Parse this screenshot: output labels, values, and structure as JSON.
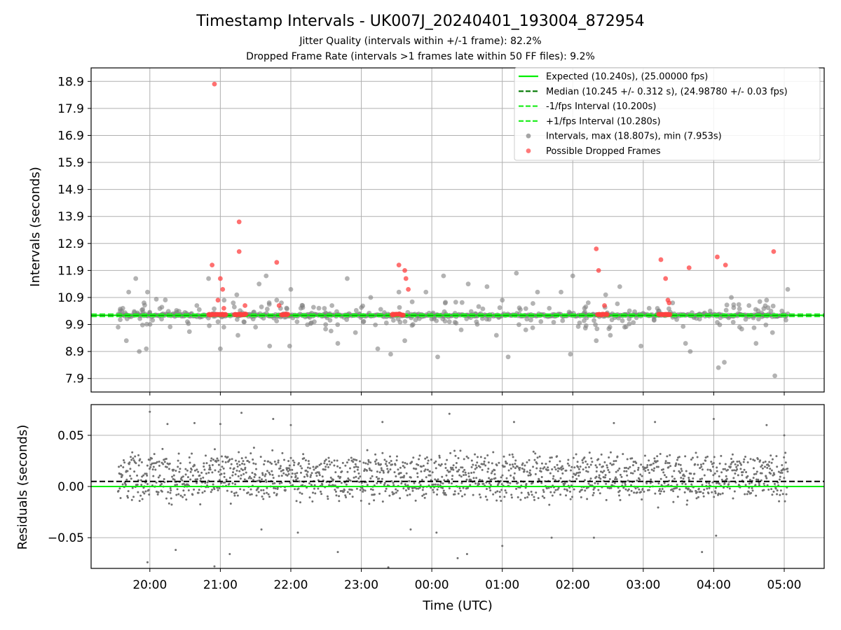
{
  "title": "Timestamp Intervals - UK007J_20240401_193004_872954",
  "subtitle_1": "Jitter Quality (intervals within +/-1 frame): 82.2%",
  "subtitle_2": "Dropped Frame Rate (intervals >1 frames late within 50 FF files): 9.2%",
  "chart_data": [
    {
      "type": "scatter",
      "ylabel": "Intervals (seconds)",
      "xlabel": "",
      "yticks": [
        "7.9",
        "8.9",
        "9.9",
        "10.9",
        "11.9",
        "12.9",
        "13.9",
        "14.9",
        "15.9",
        "16.9",
        "17.9",
        "18.9"
      ],
      "ylim": [
        7.4,
        19.4
      ],
      "xlim": [
        "19:10",
        "05:34"
      ],
      "grid": true,
      "legend_position": "top-right",
      "reference_lines": [
        {
          "label": "Expected (10.240s), (25.00000 fps)",
          "value": 10.24,
          "color": "#00ee00",
          "style": "solid"
        },
        {
          "label": "Median (10.245 +/- 0.312 s), (24.98780 +/- 0.03 fps)",
          "value": 10.245,
          "color": "#007700",
          "style": "dashed"
        },
        {
          "label": "-1/fps Interval (10.200s)",
          "value": 10.2,
          "color": "#22ee22",
          "style": "dashed"
        },
        {
          "label": "+1/fps Interval (10.280s)",
          "value": 10.28,
          "color": "#22ee22",
          "style": "dashed"
        }
      ],
      "series": [
        {
          "name": "Intervals, max (18.807s), min (7.953s)",
          "color": "#808080",
          "points": [
            [
              "19:33",
              9.8
            ],
            [
              "19:37",
              10.5
            ],
            [
              "19:40",
              9.3
            ],
            [
              "19:42",
              11.1
            ],
            [
              "19:48",
              11.6
            ],
            [
              "19:51",
              8.9
            ],
            [
              "19:55",
              10.7
            ],
            [
              "19:57",
              9.0
            ],
            [
              "19:58",
              11.1
            ],
            [
              "20:10",
              10.1
            ],
            [
              "20:20",
              10.3
            ],
            [
              "20:40",
              10.6
            ],
            [
              "20:50",
              11.6
            ],
            [
              "20:58",
              10.0
            ],
            [
              "21:00",
              9.0
            ],
            [
              "21:03",
              9.8
            ],
            [
              "21:11",
              10.7
            ],
            [
              "21:14",
              11.0
            ],
            [
              "21:15",
              9.5
            ],
            [
              "21:20",
              10.0
            ],
            [
              "21:24",
              10.2
            ],
            [
              "21:30",
              9.8
            ],
            [
              "21:33",
              11.4
            ],
            [
              "21:39",
              11.7
            ],
            [
              "21:42",
              9.1
            ],
            [
              "21:48",
              10.8
            ],
            [
              "21:52",
              10.7
            ],
            [
              "21:59",
              9.1
            ],
            [
              "22:00",
              11.2
            ],
            [
              "22:10",
              10.6
            ],
            [
              "22:20",
              10.0
            ],
            [
              "22:35",
              10.6
            ],
            [
              "22:40",
              9.2
            ],
            [
              "22:48",
              11.6
            ],
            [
              "22:55",
              9.6
            ],
            [
              "23:08",
              10.9
            ],
            [
              "23:14",
              9.0
            ],
            [
              "23:25",
              8.8
            ],
            [
              "23:32",
              11.1
            ],
            [
              "23:37",
              9.3
            ],
            [
              "23:44",
              9.9
            ],
            [
              "23:55",
              11.1
            ],
            [
              "00:05",
              8.7
            ],
            [
              "00:10",
              11.7
            ],
            [
              "00:15",
              10.0
            ],
            [
              "00:25",
              9.7
            ],
            [
              "00:31",
              11.4
            ],
            [
              "00:38",
              10.0
            ],
            [
              "00:47",
              11.3
            ],
            [
              "00:55",
              9.5
            ],
            [
              "01:00",
              10.8
            ],
            [
              "01:05",
              8.7
            ],
            [
              "01:12",
              11.8
            ],
            [
              "01:20",
              9.7
            ],
            [
              "01:30",
              11.1
            ],
            [
              "01:40",
              10.5
            ],
            [
              "01:50",
              11.1
            ],
            [
              "01:58",
              8.8
            ],
            [
              "02:00",
              11.7
            ],
            [
              "02:10",
              10.5
            ],
            [
              "02:20",
              9.3
            ],
            [
              "02:28",
              11.0
            ],
            [
              "02:32",
              9.5
            ],
            [
              "02:40",
              11.3
            ],
            [
              "02:48",
              10.1
            ],
            [
              "02:58",
              9.1
            ],
            [
              "03:05",
              10.5
            ],
            [
              "03:13",
              10.4
            ],
            [
              "03:25",
              10.7
            ],
            [
              "03:36",
              9.2
            ],
            [
              "03:40",
              8.9
            ],
            [
              "03:48",
              10.1
            ],
            [
              "03:57",
              10.4
            ],
            [
              "04:04",
              8.3
            ],
            [
              "04:09",
              8.5
            ],
            [
              "04:15",
              10.9
            ],
            [
              "04:22",
              9.8
            ],
            [
              "04:30",
              10.6
            ],
            [
              "04:36",
              9.2
            ],
            [
              "04:45",
              10.8
            ],
            [
              "04:50",
              9.6
            ],
            [
              "04:52",
              8.0
            ],
            [
              "04:58",
              10.4
            ],
            [
              "05:03",
              11.2
            ]
          ]
        },
        {
          "name": "Possible Dropped Frames",
          "color": "#ff4040",
          "points": [
            [
              "20:53",
              12.1
            ],
            [
              "20:55",
              18.8
            ],
            [
              "20:58",
              10.8
            ],
            [
              "21:00",
              11.6
            ],
            [
              "21:02",
              11.2
            ],
            [
              "21:03",
              10.5
            ],
            [
              "21:16",
              13.7
            ],
            [
              "21:16",
              12.6
            ],
            [
              "21:21",
              10.6
            ],
            [
              "21:48",
              12.2
            ],
            [
              "21:50",
              10.6
            ],
            [
              "23:32",
              12.1
            ],
            [
              "23:37",
              11.9
            ],
            [
              "23:38",
              11.6
            ],
            [
              "23:40",
              11.2
            ],
            [
              "02:20",
              12.7
            ],
            [
              "02:22",
              11.9
            ],
            [
              "02:27",
              10.6
            ],
            [
              "03:15",
              12.3
            ],
            [
              "03:19",
              11.6
            ],
            [
              "03:21",
              10.8
            ],
            [
              "03:22",
              10.7
            ],
            [
              "03:39",
              12.0
            ],
            [
              "04:03",
              12.4
            ],
            [
              "04:10",
              12.1
            ],
            [
              "04:51",
              12.6
            ]
          ],
          "clusters": [
            {
              "from": "20:50",
              "to": "21:05",
              "value": 10.27
            },
            {
              "from": "21:12",
              "to": "21:22",
              "value": 10.27
            },
            {
              "from": "21:52",
              "to": "21:58",
              "value": 10.27
            },
            {
              "from": "23:26",
              "to": "23:36",
              "value": 10.27
            },
            {
              "from": "02:21",
              "to": "02:30",
              "value": 10.27
            },
            {
              "from": "03:13",
              "to": "03:23",
              "value": 10.27
            }
          ]
        }
      ]
    },
    {
      "type": "scatter",
      "ylabel": "Residuals (seconds)",
      "xlabel": "Time (UTC)",
      "yticks": [
        "−0.05",
        "0.00",
        "0.05"
      ],
      "ylim": [
        -0.08,
        0.08
      ],
      "xlim": [
        "19:10",
        "05:34"
      ],
      "xticks": [
        "20:00",
        "21:00",
        "22:00",
        "23:00",
        "00:00",
        "01:00",
        "02:00",
        "03:00",
        "04:00",
        "05:00"
      ],
      "grid": true,
      "reference_lines": [
        {
          "value": 0.0,
          "color": "#00ee00",
          "style": "solid"
        },
        {
          "value": 0.005,
          "color": "#000000",
          "style": "dashed"
        }
      ],
      "series": [
        {
          "color": "#707070",
          "range": [
            "19:33",
            "05:03"
          ],
          "main_band": [
            -0.02,
            0.03
          ],
          "outliers": [
            [
              "19:58",
              -0.074
            ],
            [
              "20:00",
              0.073
            ],
            [
              "20:15",
              0.061
            ],
            [
              "20:22",
              -0.062
            ],
            [
              "20:38",
              0.062
            ],
            [
              "20:55",
              -0.078
            ],
            [
              "21:00",
              0.061
            ],
            [
              "21:08",
              -0.066
            ],
            [
              "21:18",
              0.072
            ],
            [
              "21:35",
              -0.042
            ],
            [
              "21:45",
              0.066
            ],
            [
              "22:00",
              0.06
            ],
            [
              "22:06",
              -0.045
            ],
            [
              "22:40",
              -0.064
            ],
            [
              "23:18",
              0.063
            ],
            [
              "23:23",
              -0.079
            ],
            [
              "23:42",
              -0.042
            ],
            [
              "00:04",
              -0.045
            ],
            [
              "00:15",
              0.071
            ],
            [
              "00:22",
              -0.07
            ],
            [
              "00:30",
              -0.066
            ],
            [
              "01:00",
              -0.058
            ],
            [
              "01:10",
              0.063
            ],
            [
              "01:42",
              -0.05
            ],
            [
              "02:18",
              -0.05
            ],
            [
              "02:35",
              0.062
            ],
            [
              "03:10",
              0.063
            ],
            [
              "03:50",
              -0.064
            ],
            [
              "04:00",
              0.066
            ],
            [
              "04:02",
              -0.048
            ],
            [
              "04:45",
              0.06
            ],
            [
              "05:00",
              0.05
            ]
          ]
        }
      ]
    }
  ]
}
